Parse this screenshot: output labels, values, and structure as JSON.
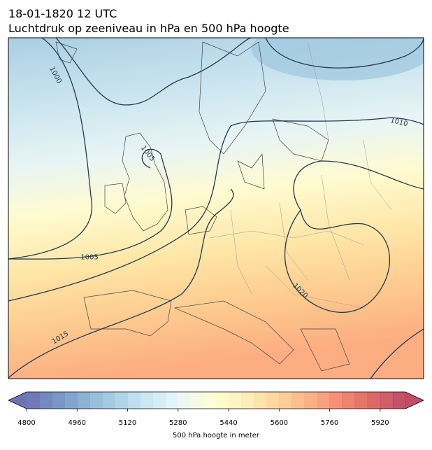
{
  "header": {
    "line1": "18-01-1820 12 UTC",
    "line2": "Luchtdruk op zeeniveau in hPa en 500 hPa hoogte"
  },
  "map": {
    "isobar_labels": [
      "1000",
      "1005",
      "1010",
      "1005",
      "1020",
      "1015"
    ]
  },
  "colorbar": {
    "label": "500 hPa hoogte in meter",
    "min": 4800,
    "max": 6000,
    "level_step": 40,
    "ticks": [
      4800,
      4960,
      5120,
      5280,
      5440,
      5600,
      5760,
      5920
    ],
    "colormap": "RdYlBu_r",
    "alpha": 0.7
  }
}
